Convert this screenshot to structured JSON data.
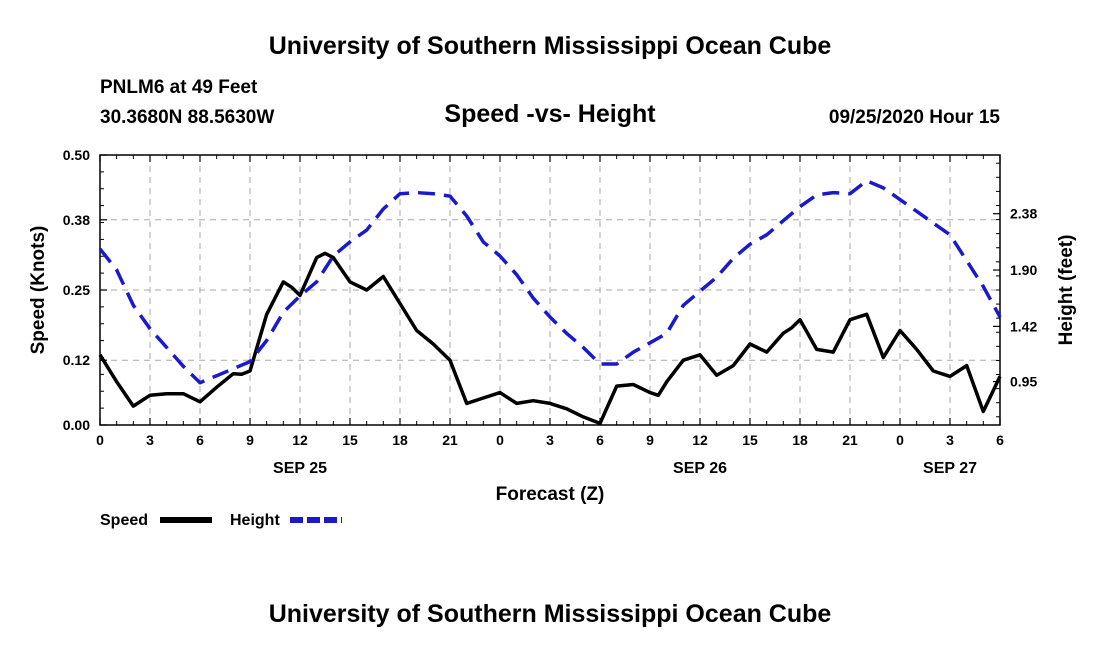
{
  "header": {
    "title": "University of Southern Mississippi Ocean Cube",
    "station": "PNLM6 at 49 Feet",
    "coords": "30.3680N 88.5630W",
    "chart_title": "Speed -vs- Height",
    "date": "09/25/2020 Hour 15",
    "footer_title": "University of Southern Mississippi Ocean Cube"
  },
  "colors": {
    "speed": "#000000",
    "height": "#1a1acc",
    "grid": "#aaaaaa"
  },
  "chart_data": {
    "type": "line",
    "title": "Speed -vs- Height",
    "xlabel": "Forecast (Z)",
    "ylabel": "Speed (Knots)",
    "y2label": "Height (feet)",
    "xlim": [
      0,
      54
    ],
    "ylim": [
      0,
      0.5
    ],
    "y2lim": [
      0.58,
      2.88
    ],
    "x_ticks": [
      0,
      3,
      6,
      9,
      12,
      15,
      18,
      21,
      24,
      27,
      30,
      33,
      36,
      39,
      42,
      45,
      48,
      51,
      54
    ],
    "x_tick_labels": [
      "0",
      "3",
      "6",
      "9",
      "12",
      "15",
      "18",
      "21",
      "0",
      "3",
      "6",
      "9",
      "12",
      "15",
      "18",
      "21",
      "0",
      "3",
      "6"
    ],
    "date_labels": [
      {
        "x": 12,
        "label": "SEP 25"
      },
      {
        "x": 36,
        "label": "SEP 26"
      },
      {
        "x": 51,
        "label": "SEP 27"
      }
    ],
    "y_ticks": [
      0.0,
      0.12,
      0.25,
      0.38,
      0.5
    ],
    "y_tick_labels": [
      "0.00",
      "0.12",
      "0.25",
      "0.38",
      "0.50"
    ],
    "y2_ticks": [
      0.95,
      1.42,
      1.9,
      2.38
    ],
    "y2_tick_labels": [
      "0.95",
      "1.42",
      "1.90",
      "2.38"
    ],
    "legend": [
      {
        "label": "Speed",
        "style": "solid"
      },
      {
        "label": "Height",
        "style": "dashed"
      }
    ],
    "series": [
      {
        "name": "Speed",
        "axis": "left",
        "x": [
          0,
          1,
          2,
          3,
          4,
          5,
          6,
          7,
          8,
          8.5,
          9,
          10,
          11,
          11.5,
          12,
          13,
          13.5,
          14,
          15,
          16,
          17,
          18,
          19,
          20,
          21,
          21.5,
          22,
          23,
          24,
          25,
          26,
          27,
          28,
          29,
          30,
          31,
          32,
          33,
          33.5,
          34,
          35,
          36,
          37,
          38,
          39,
          40,
          41,
          41.5,
          42,
          43,
          44,
          45,
          46,
          47,
          48,
          49,
          50,
          51,
          52,
          53,
          54
        ],
        "values": [
          0.13,
          0.08,
          0.035,
          0.055,
          0.058,
          0.058,
          0.043,
          0.07,
          0.095,
          0.094,
          0.1,
          0.205,
          0.265,
          0.255,
          0.24,
          0.31,
          0.318,
          0.31,
          0.265,
          0.25,
          0.275,
          0.225,
          0.175,
          0.15,
          0.12,
          0.08,
          0.04,
          0.05,
          0.06,
          0.04,
          0.045,
          0.04,
          0.03,
          0.015,
          0.003,
          0.072,
          0.075,
          0.06,
          0.055,
          0.08,
          0.12,
          0.13,
          0.092,
          0.11,
          0.15,
          0.135,
          0.17,
          0.18,
          0.195,
          0.14,
          0.135,
          0.195,
          0.205,
          0.125,
          0.175,
          0.14,
          0.1,
          0.09,
          0.11,
          0.025,
          0.09
        ]
      },
      {
        "name": "Height",
        "axis": "right",
        "x": [
          0,
          1,
          2,
          3,
          4,
          5,
          6,
          7,
          8,
          9,
          10,
          11,
          12,
          13,
          14,
          15,
          16,
          17,
          18,
          19,
          20,
          21,
          22,
          23,
          24,
          25,
          26,
          27,
          28,
          29,
          30,
          31,
          32,
          33,
          34,
          35,
          36,
          37,
          38,
          39,
          40,
          41,
          42,
          43,
          44,
          45,
          46,
          47,
          48,
          49,
          50,
          51,
          52,
          53,
          54
        ],
        "values": [
          2.08,
          1.9,
          1.6,
          1.4,
          1.24,
          1.08,
          0.94,
          1.0,
          1.06,
          1.12,
          1.3,
          1.54,
          1.68,
          1.8,
          2.02,
          2.14,
          2.24,
          2.42,
          2.55,
          2.56,
          2.55,
          2.53,
          2.36,
          2.14,
          2.02,
          1.86,
          1.66,
          1.5,
          1.36,
          1.24,
          1.1,
          1.1,
          1.2,
          1.28,
          1.36,
          1.6,
          1.72,
          1.84,
          2.0,
          2.12,
          2.2,
          2.32,
          2.44,
          2.54,
          2.56,
          2.55,
          2.66,
          2.6,
          2.5,
          2.4,
          2.3,
          2.2,
          1.98,
          1.76,
          1.5
        ]
      }
    ]
  }
}
